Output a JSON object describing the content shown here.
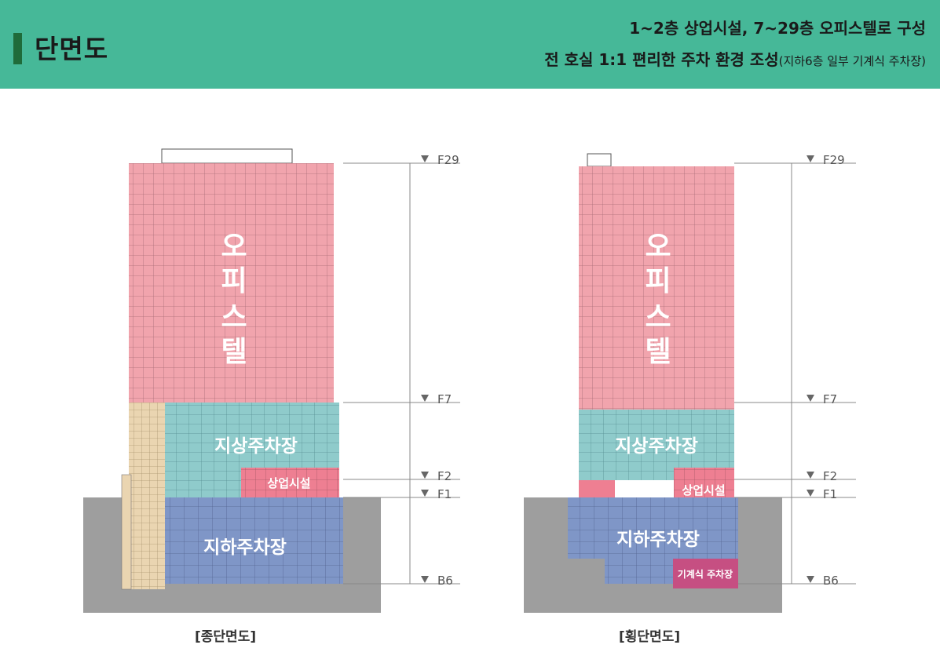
{
  "header": {
    "title": "단면도",
    "subtitle_line1": "1~2층 상업시설, 7~29층 오피스텔로 구성",
    "subtitle_line2": "전 호실 1:1 편리한 주차 환경 조성",
    "subtitle_note": "(지하6층 일부 기계식 주차장)"
  },
  "sections": {
    "longitudinal": {
      "caption": "[종단면도]",
      "officetel_label": [
        "오",
        "피",
        "스",
        "텔"
      ],
      "ground_parking_label": "지상주차장",
      "commercial_label": "상업시설",
      "basement_parking_label": "지하주차장"
    },
    "transverse": {
      "caption": "[횡단면도]",
      "officetel_label": [
        "오",
        "피",
        "스",
        "텔"
      ],
      "ground_parking_label": "지상주차장",
      "commercial_label": "상업시설",
      "basement_parking_label": "지하주차장",
      "mechanical_parking_label": "기계식 주차장"
    }
  },
  "levels": {
    "f29": "F29",
    "f7": "F7",
    "f2": "F2",
    "f1": "F1",
    "b6": "B6"
  },
  "colors": {
    "header_bg": "#46b898",
    "officetel": "#f1a4ad",
    "ground_parking": "#8fcbcb",
    "commercial": "#ee7f92",
    "basement_parking": "#7f96c7",
    "stair_core": "#ead5b1",
    "ground": "#9e9e9e",
    "mechanical_parking": "#c64f82"
  }
}
